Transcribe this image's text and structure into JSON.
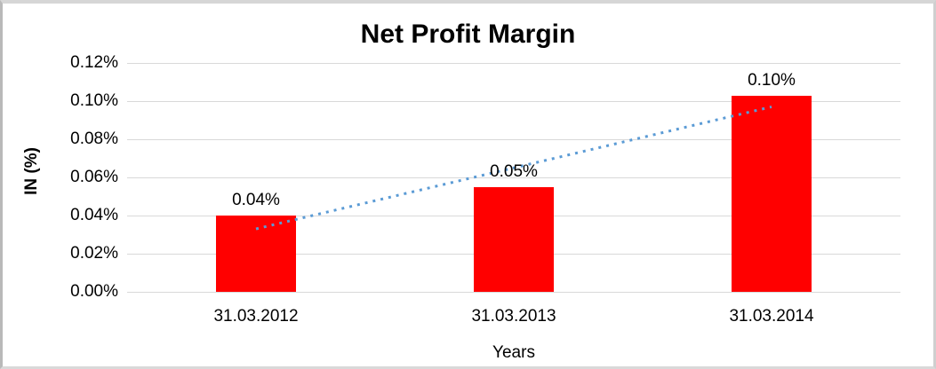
{
  "chart_data": {
    "type": "bar",
    "title": "Net Profit Margin",
    "xlabel": "Years",
    "ylabel": "IN (%)",
    "categories": [
      "31.03.2012",
      "31.03.2013",
      "31.03.2014"
    ],
    "values": [
      0.04,
      0.055,
      0.103
    ],
    "data_labels": [
      "0.04%",
      "0.05%",
      "0.10%"
    ],
    "y_tick_labels": [
      "0.12%",
      "0.10%",
      "0.08%",
      "0.06%",
      "0.04%",
      "0.02%",
      "0.00%"
    ],
    "y_tick_values": [
      0.12,
      0.1,
      0.08,
      0.06,
      0.04,
      0.02,
      0.0
    ],
    "ylim": [
      0,
      0.12
    ],
    "grid": true,
    "legend": "none",
    "bar_color": "#ff0000",
    "gridline_color": "#d9d9d9",
    "text_color": "#000000",
    "trendline": {
      "type": "linear",
      "style": "dotted",
      "color": "#5b9bd5",
      "start_value": 0.033,
      "end_value": 0.097
    }
  }
}
